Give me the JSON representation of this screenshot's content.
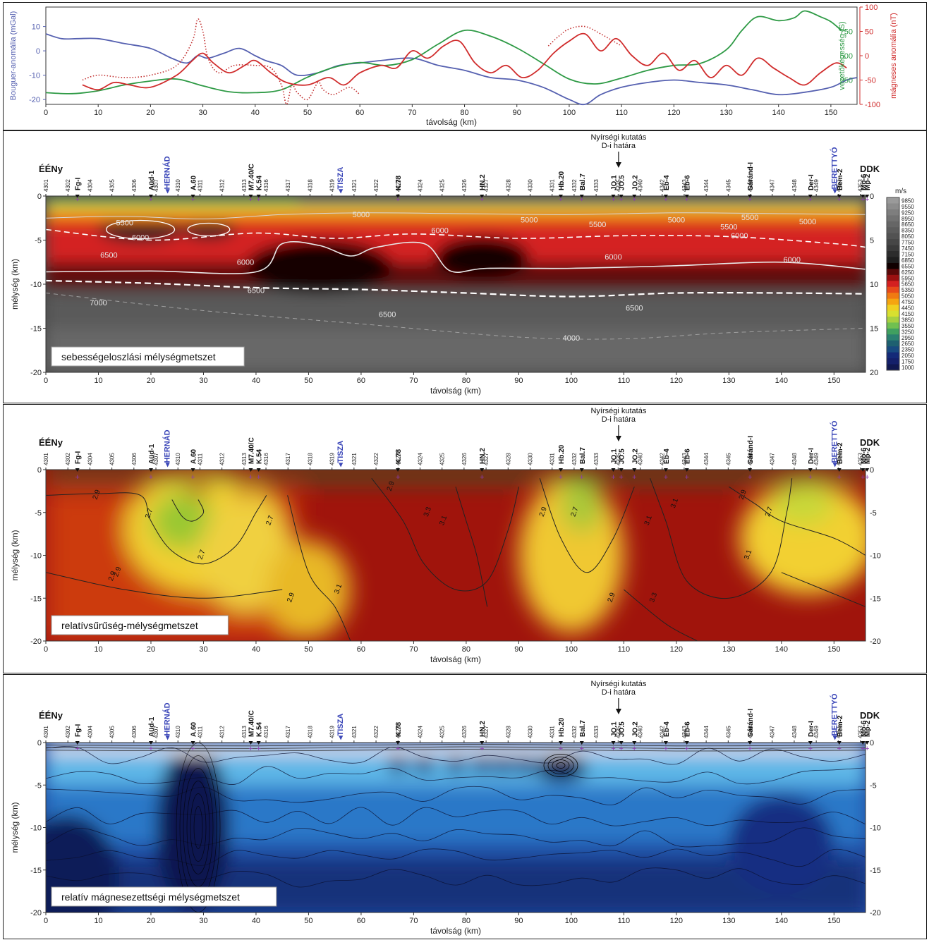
{
  "chart_data": [
    {
      "type": "line",
      "xlabel": "távolság (km)",
      "xlim": [
        0,
        155
      ],
      "xticks": [
        0,
        10,
        20,
        30,
        40,
        50,
        60,
        70,
        80,
        90,
        100,
        110,
        120,
        130,
        140,
        150
      ],
      "axes": [
        {
          "label": "Bouguer-anomália (mGal)",
          "side": "left",
          "color": "#5560b0",
          "ylim": [
            -22,
            18
          ],
          "ticks": [
            10,
            0,
            -10,
            -20
          ]
        },
        {
          "label": "vezetőképesség (S)",
          "side": "right-inner",
          "color": "#2e9a45",
          "ylim": [
            0,
            1000
          ],
          "ticks": [
            250,
            500,
            750
          ]
        },
        {
          "label": "mágneses anomália (nT)",
          "side": "right",
          "color": "#d02c2c",
          "ylim": [
            -100,
            100
          ],
          "ticks": [
            100,
            50,
            0,
            -50,
            -100
          ]
        }
      ],
      "series": [
        {
          "axis": 0,
          "color": "#5560b0",
          "style": "solid",
          "x": [
            0,
            3,
            6,
            10,
            15,
            20,
            24,
            27,
            29,
            31,
            34,
            37,
            40,
            42,
            45,
            48,
            52,
            56,
            60,
            64,
            70,
            75,
            80,
            85,
            90,
            95,
            100,
            103,
            106,
            110,
            115,
            120,
            125,
            130,
            135,
            140,
            145,
            150,
            153,
            155
          ],
          "y": [
            7,
            5,
            5,
            5,
            3,
            1,
            -3,
            -5,
            -2,
            -3,
            -1,
            1,
            -2,
            -4,
            -6,
            -10,
            -9,
            -6,
            -5,
            -4,
            -3,
            -6,
            -8,
            -11,
            -12,
            -15,
            -20,
            -22,
            -18,
            -15,
            -13,
            -12,
            -13,
            -14,
            -16,
            -18,
            -17,
            -15,
            -12,
            -11
          ]
        },
        {
          "axis": 1,
          "color": "#2e9a45",
          "style": "solid",
          "x": [
            0,
            5,
            10,
            15,
            20,
            25,
            30,
            35,
            40,
            45,
            50,
            55,
            60,
            65,
            70,
            75,
            80,
            85,
            90,
            95,
            100,
            105,
            110,
            115,
            120,
            125,
            130,
            133,
            136,
            140,
            143,
            145,
            148,
            150,
            152
          ],
          "y": [
            120,
            110,
            140,
            200,
            240,
            260,
            190,
            130,
            120,
            150,
            280,
            380,
            430,
            400,
            460,
            620,
            760,
            700,
            580,
            420,
            260,
            210,
            270,
            350,
            400,
            420,
            560,
            760,
            900,
            860,
            890,
            960,
            900,
            850,
            760
          ]
        },
        {
          "axis": 2,
          "color": "#d02c2c",
          "style": "solid",
          "x": [
            7,
            10,
            13,
            16,
            20,
            25,
            28,
            30,
            32,
            35,
            38,
            40,
            43,
            46,
            50,
            54,
            57,
            60,
            64,
            67,
            70,
            73,
            76,
            79,
            82,
            85,
            88,
            91,
            94,
            97,
            100,
            103,
            106,
            109,
            112,
            115,
            118,
            121,
            124,
            127,
            130,
            133,
            136,
            139,
            142,
            145,
            148,
            151,
            153
          ],
          "y": [
            -60,
            -70,
            -55,
            -60,
            -65,
            -40,
            -10,
            5,
            -15,
            -35,
            -20,
            -10,
            -35,
            -55,
            -60,
            -45,
            -60,
            -35,
            -20,
            -25,
            10,
            -5,
            20,
            30,
            -15,
            -35,
            -20,
            -45,
            -30,
            5,
            30,
            45,
            10,
            35,
            0,
            -20,
            5,
            -30,
            -10,
            -45,
            -20,
            -40,
            -5,
            -25,
            -45,
            -60,
            -35,
            -15,
            -25
          ]
        },
        {
          "axis": 2,
          "color": "#c23030",
          "style": "dotted",
          "x": [
            7,
            10,
            15,
            20,
            25,
            28,
            29,
            30,
            31,
            33,
            36,
            40,
            43,
            45,
            46,
            47,
            48,
            50,
            52,
            53,
            55,
            58,
            60
          ],
          "y": [
            -50,
            -40,
            -45,
            -40,
            -20,
            30,
            75,
            50,
            -5,
            -35,
            -20,
            -20,
            -25,
            -60,
            -100,
            -60,
            -75,
            -90,
            -55,
            -70,
            -80,
            -65,
            -80
          ]
        },
        {
          "axis": 2,
          "color": "#c23030",
          "style": "dotted",
          "x": [
            96,
            98,
            100,
            103,
            106,
            110
          ],
          "y": [
            20,
            40,
            55,
            60,
            45,
            20
          ]
        }
      ]
    },
    {
      "type": "heatmap",
      "title": "sebességeloszlási mélységmetszet",
      "xlabel": "távolság (km)",
      "ylabel": "mélység (km)",
      "xlim": [
        0,
        156
      ],
      "ylim": [
        -20,
        0
      ],
      "xticks": [
        0,
        10,
        20,
        30,
        40,
        50,
        60,
        70,
        80,
        90,
        100,
        110,
        120,
        130,
        140,
        150
      ],
      "yticks": [
        0,
        -5,
        -10,
        -15,
        -20
      ],
      "right_yticks": [
        0,
        5,
        10,
        15,
        20
      ],
      "direction_left": "ÉÉNy",
      "direction_right": "DDK",
      "annotation": "Nyírségi kutatás\nD-i határa",
      "colorbar_unit": "m/s",
      "colorbar_values": [
        9850,
        9550,
        9250,
        8950,
        8650,
        8350,
        8050,
        7750,
        7450,
        7150,
        6850,
        6550,
        6250,
        5950,
        5650,
        5350,
        5050,
        4750,
        4450,
        4150,
        3850,
        3550,
        3250,
        2950,
        2650,
        2350,
        2050,
        1750,
        1000
      ],
      "contour_labels": [
        "5000",
        "5500",
        "6000",
        "6500",
        "7000",
        "5000",
        "5500",
        "6000",
        "6500",
        "6000",
        "5000",
        "5500",
        "5000",
        "6000",
        "6000",
        "6500",
        "6500",
        "4000",
        "5500",
        "6000"
      ]
    },
    {
      "type": "heatmap",
      "title": "relatívsűrűség-mélységmetszet",
      "xlabel": "távolság (km)",
      "ylabel": "mélység (km)",
      "xlim": [
        0,
        156
      ],
      "ylim": [
        -20,
        0
      ],
      "xticks": [
        0,
        10,
        20,
        30,
        40,
        50,
        60,
        70,
        80,
        90,
        100,
        110,
        120,
        130,
        140,
        150
      ],
      "yticks": [
        0,
        -5,
        -10,
        -15,
        -20
      ],
      "right_yticks": [
        0,
        -5,
        -10,
        -15,
        -20
      ],
      "direction_left": "ÉÉNy",
      "direction_right": "DDK",
      "annotation": "Nyírségi kutatás\nD-i határa",
      "contour_labels": [
        "2.9",
        "2.7",
        "2.9",
        "2.7",
        "2.7",
        "2.9",
        "3.1",
        "3.3",
        "3.1",
        "2.9",
        "2.7",
        "3.1",
        "2.9",
        "3.1",
        "3.3",
        "2.9",
        "2.7",
        "3.1",
        "2.9",
        "2.9"
      ]
    },
    {
      "type": "heatmap",
      "title": "relatív mágnesezettségi mélységmetszet",
      "xlabel": "távolság (km)",
      "ylabel": "mélység (km)",
      "xlim": [
        0,
        156
      ],
      "ylim": [
        -20,
        0
      ],
      "xticks": [
        0,
        10,
        20,
        30,
        40,
        50,
        60,
        70,
        80,
        90,
        100,
        110,
        120,
        130,
        140,
        150
      ],
      "yticks": [
        0,
        -5,
        -10,
        -15,
        -20
      ],
      "right_yticks": [
        0,
        -5,
        -10,
        -15,
        -20
      ],
      "direction_left": "ÉÉNy",
      "direction_right": "DDK",
      "annotation": "Nyírségi kutatás\nD-i határa"
    }
  ],
  "profile": {
    "station_numbers": [
      "4301",
      "4302",
      "4304",
      "4305",
      "4306",
      "4307",
      "4310",
      "4311",
      "4312",
      "4313",
      "4316",
      "4317",
      "4318",
      "4319",
      "4321",
      "4322",
      "4323",
      "4324",
      "4325",
      "4326",
      "4327",
      "4328",
      "4330",
      "4331",
      "4332",
      "4333",
      "4335",
      "4340",
      "4342",
      "4343",
      "4344",
      "4345",
      "4346",
      "4347",
      "4348",
      "4349",
      "4351",
      "4353"
    ],
    "wells": [
      {
        "name": "Fg-I",
        "km": 6
      },
      {
        "name": "Aüd-1",
        "km": 20
      },
      {
        "name": "A.60",
        "km": 28
      },
      {
        "name": "M7.40/C",
        "km": 39
      },
      {
        "name": "K.54",
        "km": 40.5
      },
      {
        "name": "K.78",
        "km": 67
      },
      {
        "name": "HN.2",
        "km": 83
      },
      {
        "name": "Hb.20",
        "km": 98
      },
      {
        "name": "Bal.7",
        "km": 102
      },
      {
        "name": "JO.1",
        "km": 108
      },
      {
        "name": "JO.5",
        "km": 109.5
      },
      {
        "name": "JO.2",
        "km": 112
      },
      {
        "name": "Eb-4",
        "km": 118
      },
      {
        "name": "Eb-6",
        "km": 122
      },
      {
        "name": "Sáránd-I",
        "km": 134
      },
      {
        "name": "Der-I",
        "km": 145.5
      },
      {
        "name": "Bem-2",
        "km": 151
      },
      {
        "name": "Mo-6",
        "km": 155.5
      },
      {
        "name": "Mp-2",
        "km": 156.3
      }
    ],
    "rivers": [
      {
        "name": "HERNÁD",
        "km": 23
      },
      {
        "name": "TISZA",
        "km": 56
      },
      {
        "name": "BERETTYÓ",
        "km": 150
      }
    ]
  }
}
